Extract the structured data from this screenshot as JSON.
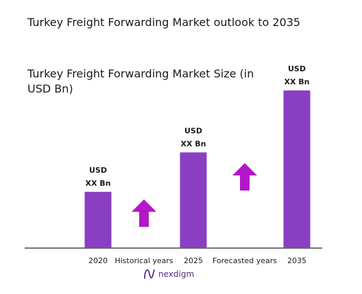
{
  "title": "Turkey Freight Forwarding Market outlook to 2035",
  "subtitle": "Turkey Freight Forwarding Market Size (in USD Bn)",
  "brand": {
    "name": "nexdigm",
    "color": "#5a2d82"
  },
  "colors": {
    "bar": "#8a3fc2",
    "arrow": "#b317c9",
    "axis": "#222222"
  },
  "chart_data": {
    "type": "bar",
    "title": "Turkey Freight Forwarding Market Size (in USD Bn)",
    "categories": [
      "2020",
      "2025",
      "2035"
    ],
    "values": [
      1.0,
      1.7,
      2.8
    ],
    "data_labels": [
      [
        "USD",
        "XX Bn"
      ],
      [
        "USD",
        "XX Bn"
      ],
      [
        "USD",
        "XX Bn"
      ]
    ],
    "period_labels": [
      "Historical years",
      "Forecasted years"
    ],
    "period_indicator": "up-arrow",
    "grid": false,
    "legend": "none",
    "ylim": [
      0,
      3
    ]
  }
}
